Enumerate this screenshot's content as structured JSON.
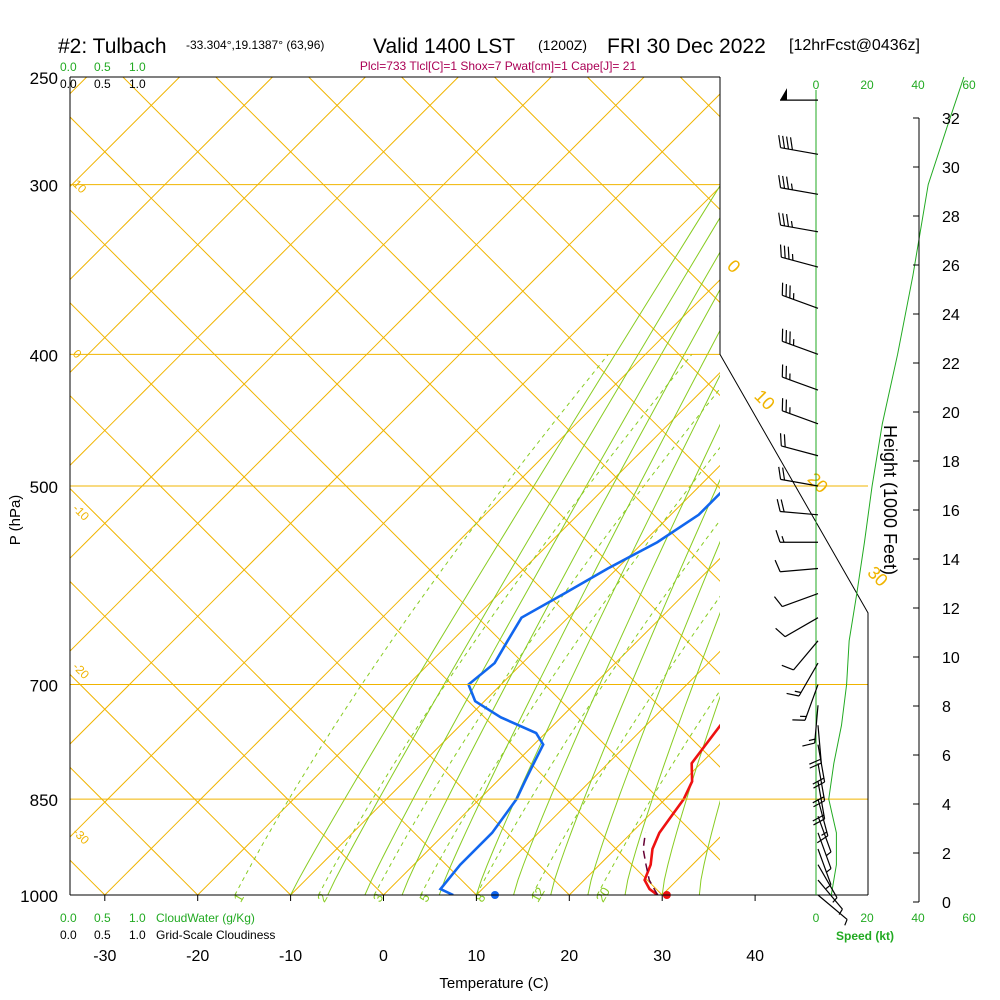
{
  "header": {
    "station": "#2: Tulbach",
    "coords": "-33.304°,19.1387° (63,96)",
    "valid": "Valid 1400 LST",
    "zulu": "(1200Z)",
    "date": "FRI 30 Dec 2022",
    "fcst": "[12hrFcst@0436z]",
    "params": "Plcl=733 Tlcl[C]=1 Shox=7 Pwat[cm]=1 Cape[J]= 21"
  },
  "colors": {
    "temperature": "#ee1111",
    "dewpoint": "#1166ee",
    "isobar": "#f0b400",
    "dry_adiabat": "#f0b400",
    "moist_adiabat": "#88cc22",
    "mixing_ratio": "#88cc22",
    "cloud": "#22aa22",
    "params": "#aa0055"
  },
  "chart_data": {
    "type": "line",
    "title": "#2: Tulbach -33.304°,19.1387° (63,96) Valid 1400 LST (1200Z) FRI 30 Dec 2022 [12hrFcst@0436z]",
    "xlabel": "Temperature (C)",
    "ylabel": "P (hPa)",
    "y2label": "Height (1000 Feet)",
    "xlim": [
      -35,
      36
    ],
    "ylim": [
      1000,
      250
    ],
    "x_ticks": [
      -30,
      -20,
      -10,
      0,
      10,
      20,
      30,
      40
    ],
    "pressure_ticks": [
      250,
      300,
      400,
      500,
      700,
      850,
      1000
    ],
    "height_ticks": [
      0,
      2,
      4,
      6,
      8,
      10,
      12,
      14,
      16,
      18,
      20,
      22,
      24,
      26,
      28,
      30,
      32
    ],
    "isobars": [
      300,
      400,
      500,
      700,
      850,
      1000
    ],
    "dry_adiabat_labels": [
      {
        "text": "10",
        "side": "left",
        "p": 300
      },
      {
        "text": "0",
        "side": "left",
        "p": 400
      },
      {
        "text": "-10",
        "side": "left",
        "p": 520
      },
      {
        "text": "-20",
        "side": "left",
        "p": 680
      },
      {
        "text": "-30",
        "side": "left",
        "p": 900
      },
      {
        "text": "0",
        "side": "right",
        "p": 345
      },
      {
        "text": "10",
        "side": "right",
        "p": 430
      },
      {
        "text": "20",
        "side": "right",
        "p": 495
      },
      {
        "text": "30",
        "side": "right",
        "p": 580
      }
    ],
    "mixing_ratio_labels": [
      "1",
      "2",
      "3",
      "5",
      "8",
      "12",
      "20"
    ],
    "cloud_scale": [
      "0.0",
      "0.5",
      "1.0"
    ],
    "cloud_water_label": "CloudWater (g/Kg)",
    "cloudiness_label": "Grid-Scale Cloudiness",
    "wind_speed_ticks": [
      0,
      20,
      40,
      60
    ],
    "wind_speed_label": "Speed (kt)",
    "series": [
      {
        "key": "temperature",
        "values": [
          {
            "p": 1000,
            "t": 29.5
          },
          {
            "p": 990,
            "t": 28.0
          },
          {
            "p": 975,
            "t": 26.5
          },
          {
            "p": 950,
            "t": 25.5
          },
          {
            "p": 925,
            "t": 24.0
          },
          {
            "p": 900,
            "t": 23.0
          },
          {
            "p": 875,
            "t": 22.5
          },
          {
            "p": 850,
            "t": 22.0
          },
          {
            "p": 825,
            "t": 21.0
          },
          {
            "p": 800,
            "t": 19.0
          },
          {
            "p": 775,
            "t": 18.5
          },
          {
            "p": 750,
            "t": 18.0
          },
          {
            "p": 725,
            "t": 18.0
          },
          {
            "p": 700,
            "t": 18.0
          },
          {
            "p": 675,
            "t": 17.0
          },
          {
            "p": 650,
            "t": 15.5
          },
          {
            "p": 600,
            "t": 12.5
          },
          {
            "p": 550,
            "t": 9.5
          },
          {
            "p": 500,
            "t": 6.0
          },
          {
            "p": 450,
            "t": 2.5
          },
          {
            "p": 400,
            "t": -1.5
          },
          {
            "p": 350,
            "t": -6.5
          },
          {
            "p": 300,
            "t": -11.5
          },
          {
            "p": 275,
            "t": -14.5
          },
          {
            "p": 260,
            "t": -16.5
          }
        ]
      },
      {
        "key": "dewpoint",
        "values": [
          {
            "p": 1000,
            "t": 7.5
          },
          {
            "p": 990,
            "t": 5.5
          },
          {
            "p": 950,
            "t": 5.0
          },
          {
            "p": 900,
            "t": 5.0
          },
          {
            "p": 850,
            "t": 4.0
          },
          {
            "p": 825,
            "t": 3.0
          },
          {
            "p": 800,
            "t": 2.0
          },
          {
            "p": 775,
            "t": 1.0
          },
          {
            "p": 760,
            "t": -1.0
          },
          {
            "p": 740,
            "t": -6.5
          },
          {
            "p": 720,
            "t": -11.0
          },
          {
            "p": 700,
            "t": -13.5
          },
          {
            "p": 675,
            "t": -13.0
          },
          {
            "p": 650,
            "t": -14.0
          },
          {
            "p": 625,
            "t": -15.0
          },
          {
            "p": 600,
            "t": -13.0
          },
          {
            "p": 575,
            "t": -11.0
          },
          {
            "p": 550,
            "t": -8.5
          },
          {
            "p": 525,
            "t": -7.0
          },
          {
            "p": 500,
            "t": -7.0
          },
          {
            "p": 470,
            "t": -9.5
          },
          {
            "p": 450,
            "t": -12.0
          },
          {
            "p": 400,
            "t": -21.0
          },
          {
            "p": 375,
            "t": -26.0
          },
          {
            "p": 350,
            "t": -30.0
          },
          {
            "p": 340,
            "t": -31.5
          },
          {
            "p": 300,
            "t": -31.0
          },
          {
            "p": 275,
            "t": -31.0
          },
          {
            "p": 260,
            "t": -31.5
          }
        ]
      },
      {
        "key": "parcel",
        "values": [
          {
            "p": 1000,
            "t": 29.5
          },
          {
            "p": 975,
            "t": 27.0
          },
          {
            "p": 950,
            "t": 25.0
          },
          {
            "p": 925,
            "t": 23.0
          },
          {
            "p": 900,
            "t": 21.5
          }
        ]
      }
    ],
    "surface_temperature": {
      "p": 1000,
      "t": 30.5
    },
    "surface_dewpoint": {
      "p": 1000,
      "t": 12.0
    },
    "wind_barbs": [
      {
        "p": 260,
        "speed": 50,
        "dir": 270
      },
      {
        "p": 285,
        "speed": 40,
        "dir": 280
      },
      {
        "p": 305,
        "speed": 35,
        "dir": 280
      },
      {
        "p": 325,
        "speed": 35,
        "dir": 280
      },
      {
        "p": 345,
        "speed": 35,
        "dir": 285
      },
      {
        "p": 370,
        "speed": 35,
        "dir": 290
      },
      {
        "p": 400,
        "speed": 35,
        "dir": 290
      },
      {
        "p": 425,
        "speed": 25,
        "dir": 290
      },
      {
        "p": 450,
        "speed": 25,
        "dir": 290
      },
      {
        "p": 475,
        "speed": 20,
        "dir": 285
      },
      {
        "p": 500,
        "speed": 20,
        "dir": 280
      },
      {
        "p": 525,
        "speed": 20,
        "dir": 275
      },
      {
        "p": 550,
        "speed": 15,
        "dir": 270
      },
      {
        "p": 575,
        "speed": 10,
        "dir": 265
      },
      {
        "p": 600,
        "speed": 10,
        "dir": 250
      },
      {
        "p": 625,
        "speed": 10,
        "dir": 240
      },
      {
        "p": 650,
        "speed": 10,
        "dir": 220
      },
      {
        "p": 675,
        "speed": 15,
        "dir": 210
      },
      {
        "p": 700,
        "speed": 15,
        "dir": 200
      },
      {
        "p": 725,
        "speed": 15,
        "dir": 185
      },
      {
        "p": 750,
        "speed": 20,
        "dir": 175
      },
      {
        "p": 775,
        "speed": 20,
        "dir": 170
      },
      {
        "p": 800,
        "speed": 20,
        "dir": 170
      },
      {
        "p": 825,
        "speed": 20,
        "dir": 170
      },
      {
        "p": 850,
        "speed": 15,
        "dir": 165
      },
      {
        "p": 875,
        "speed": 5,
        "dir": 160
      },
      {
        "p": 900,
        "speed": 5,
        "dir": 160
      },
      {
        "p": 925,
        "speed": 5,
        "dir": 160
      },
      {
        "p": 950,
        "speed": 5,
        "dir": 150
      },
      {
        "p": 975,
        "speed": 5,
        "dir": 140
      },
      {
        "p": 1000,
        "speed": 5,
        "dir": 130
      }
    ],
    "wind_speed_profile": [
      {
        "p": 1000,
        "speed": 6
      },
      {
        "p": 950,
        "speed": 8
      },
      {
        "p": 900,
        "speed": 8
      },
      {
        "p": 850,
        "speed": 5
      },
      {
        "p": 800,
        "speed": 7
      },
      {
        "p": 750,
        "speed": 10
      },
      {
        "p": 700,
        "speed": 12
      },
      {
        "p": 650,
        "speed": 13
      },
      {
        "p": 600,
        "speed": 16
      },
      {
        "p": 550,
        "speed": 19
      },
      {
        "p": 500,
        "speed": 22
      },
      {
        "p": 450,
        "speed": 26
      },
      {
        "p": 400,
        "speed": 32
      },
      {
        "p": 350,
        "speed": 38
      },
      {
        "p": 300,
        "speed": 44
      },
      {
        "p": 270,
        "speed": 52
      },
      {
        "p": 250,
        "speed": 58
      }
    ]
  }
}
